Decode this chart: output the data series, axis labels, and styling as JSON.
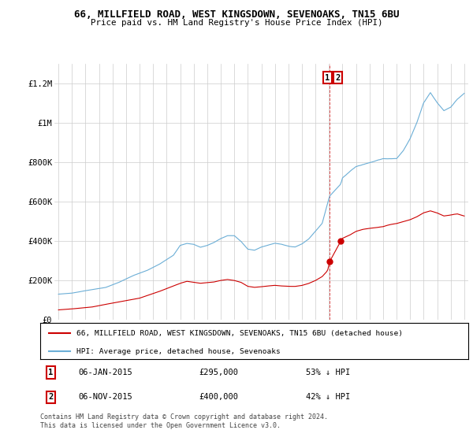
{
  "title": "66, MILLFIELD ROAD, WEST KINGSDOWN, SEVENOAKS, TN15 6BU",
  "subtitle": "Price paid vs. HM Land Registry's House Price Index (HPI)",
  "legend_line1": "66, MILLFIELD ROAD, WEST KINGSDOWN, SEVENOAKS, TN15 6BU (detached house)",
  "legend_line2": "HPI: Average price, detached house, Sevenoaks",
  "annotation1_num": "1",
  "annotation1_date": "06-JAN-2015",
  "annotation1_price": "£295,000",
  "annotation1_hpi": "53% ↓ HPI",
  "annotation2_num": "2",
  "annotation2_date": "06-NOV-2015",
  "annotation2_price": "£400,000",
  "annotation2_hpi": "42% ↓ HPI",
  "footer": "Contains HM Land Registry data © Crown copyright and database right 2024.\nThis data is licensed under the Open Government Licence v3.0.",
  "hpi_color": "#6baed6",
  "price_color": "#cc0000",
  "vline_color": "#cc0000",
  "grid_color": "#cccccc",
  "bg_color": "#ffffff",
  "annotation_box_color": "#cc0000",
  "ylim": [
    0,
    1300000
  ],
  "yticks": [
    0,
    200000,
    400000,
    600000,
    800000,
    1000000,
    1200000
  ],
  "ytick_labels": [
    "£0",
    "£200K",
    "£400K",
    "£600K",
    "£800K",
    "£1M",
    "£1.2M"
  ],
  "x_start_year": 1995,
  "x_end_year": 2025,
  "sale1_year": 2015.04,
  "sale1_price": 295000,
  "sale2_year": 2015.87,
  "sale2_price": 400000
}
